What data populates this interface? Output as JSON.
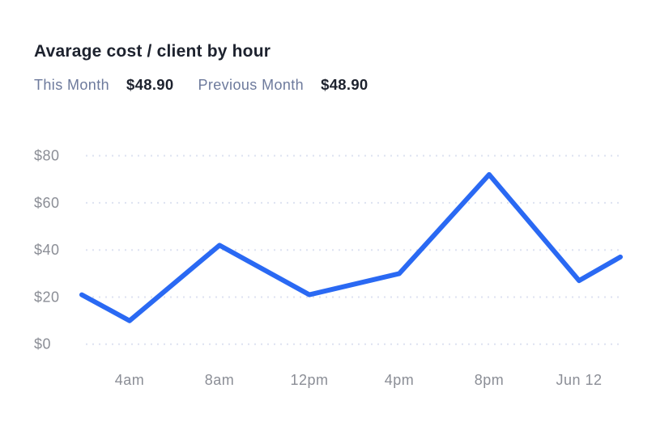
{
  "header": {
    "title": "Avarage cost / client by hour",
    "legend": [
      {
        "label": "This Month",
        "value": "$48.90"
      },
      {
        "label": "Previous Month",
        "value": "$48.90"
      }
    ]
  },
  "colors": {
    "background": "#ffffff",
    "title_text": "#1d222e",
    "legend_label_text": "#6d7a9c",
    "legend_value_text": "#1d222e",
    "axis_text": "#8b8e96",
    "gridline": "#dde2f1",
    "line": "#2a69f3"
  },
  "chart_data": {
    "type": "line",
    "title": "Avarage cost / client by hour",
    "xlabel": "",
    "ylabel": "",
    "ylim": [
      0,
      80
    ],
    "y_ticks": [
      80,
      60,
      40,
      20,
      0
    ],
    "y_tick_labels": [
      "$80",
      "$60",
      "$40",
      "$20",
      "$0"
    ],
    "x_tick_labels": [
      "4am",
      "8am",
      "12pm",
      "4pm",
      "8pm",
      "Jun 12"
    ],
    "grid": "horizontal-dotted",
    "legend_position": "top",
    "legend": [
      {
        "label": "This Month",
        "value": "$48.90"
      },
      {
        "label": "Previous Month",
        "value": "$48.90"
      }
    ],
    "series": [
      {
        "name": "This Month",
        "color": "#2a69f3",
        "x": [
          "(left edge)",
          "4am",
          "8am",
          "12pm",
          "4pm",
          "8pm",
          "Jun 12",
          "(right edge)"
        ],
        "values": [
          21,
          10,
          42,
          21,
          30,
          72,
          27,
          37
        ]
      }
    ]
  }
}
